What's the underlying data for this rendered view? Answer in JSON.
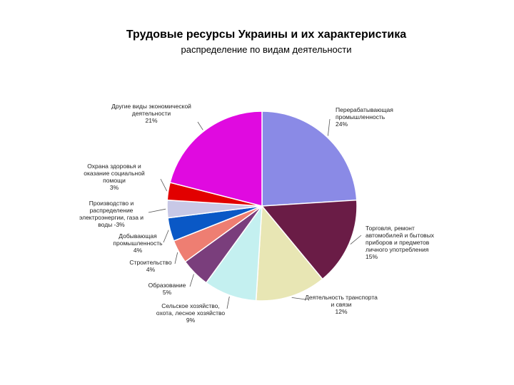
{
  "chart_data": {
    "type": "pie",
    "title": "Трудовые ресурсы Украины и их характеристика",
    "subtitle": "распределение по видам деятельности",
    "slices": [
      {
        "lines": [
          "Перерабатывающая",
          "промышленность",
          "24%"
        ],
        "value": 24,
        "color": "#8a8ae6"
      },
      {
        "lines": [
          "Торговля, ремонт",
          "автомобилей и бытовых",
          "приборов и предметов",
          "личного употребления",
          "15%"
        ],
        "value": 15,
        "color": "#6a1c46"
      },
      {
        "lines": [
          "Деятельность транспорта",
          "и связи",
          "12%"
        ],
        "value": 12,
        "color": "#e8e6b4"
      },
      {
        "lines": [
          "Сельское хозяйство,",
          "охота, лесное хозяйство",
          "9%"
        ],
        "value": 9,
        "color": "#c4f0f0"
      },
      {
        "lines": [
          "Образование",
          "5%"
        ],
        "value": 5,
        "color": "#7a3e7c"
      },
      {
        "lines": [
          "Строительство",
          "4%"
        ],
        "value": 4,
        "color": "#ee7e72"
      },
      {
        "lines": [
          "Добывающая",
          "промышленность",
          "4%"
        ],
        "value": 4,
        "color": "#0a58c6"
      },
      {
        "lines": [
          "Производство и",
          "распределение",
          "электроэнергии, газа и",
          "воды -3%"
        ],
        "value": 3,
        "color": "#c8c8e6"
      },
      {
        "lines": [
          "Охрана здоровья и",
          "оказание социальной",
          "помощи",
          "3%"
        ],
        "value": 3,
        "color": "#e20000"
      },
      {
        "lines": [
          "Другие виды экономической",
          "деятельности",
          "21%"
        ],
        "value": 21,
        "color": "#e00ae0"
      }
    ]
  }
}
